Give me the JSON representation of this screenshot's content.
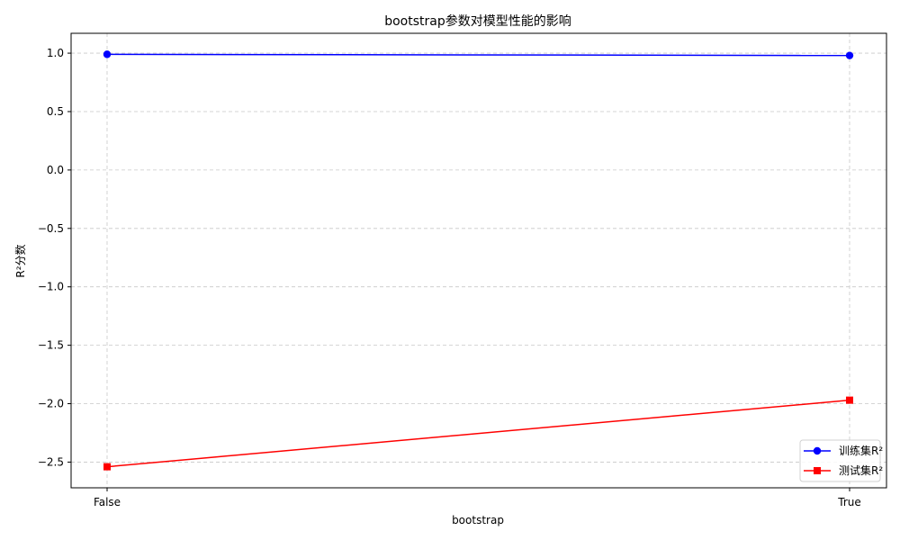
{
  "chart_data": {
    "type": "line",
    "title": "bootstrap参数对模型性能的影响",
    "xlabel": "bootstrap",
    "ylabel": "R²分数",
    "categories": [
      "False",
      "True"
    ],
    "ylim": [
      -2.72,
      1.17
    ],
    "yticks": [
      1.0,
      0.5,
      0.0,
      -0.5,
      -1.0,
      -1.5,
      -2.0,
      -2.5
    ],
    "ytick_labels": [
      "1.0",
      "0.5",
      "0.0",
      "−0.5",
      "−1.0",
      "−1.5",
      "−2.0",
      "−2.5"
    ],
    "grid": true,
    "legend_position": "bottom-right",
    "series": [
      {
        "name": "训练集R²",
        "values": [
          0.99,
          0.98
        ],
        "color": "#0000ff",
        "marker": "circle"
      },
      {
        "name": "测试集R²",
        "values": [
          -2.54,
          -1.97
        ],
        "color": "#ff0000",
        "marker": "square"
      }
    ]
  }
}
